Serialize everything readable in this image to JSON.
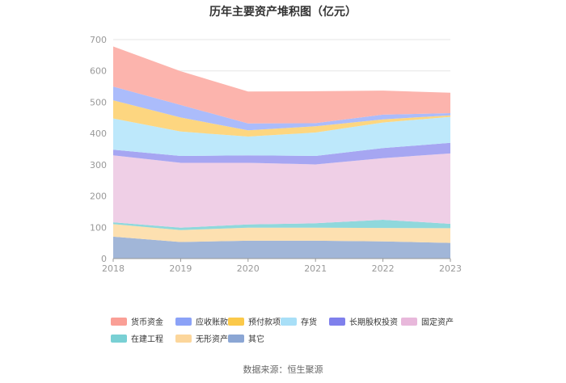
{
  "chart_data": {
    "type": "area",
    "stacked": true,
    "title": "历年主要资产堆积图（亿元）",
    "x": [
      "2018",
      "2019",
      "2020",
      "2021",
      "2022",
      "2023"
    ],
    "ylim": [
      0,
      700
    ],
    "yticks": [
      0,
      100,
      200,
      300,
      400,
      500,
      600,
      700
    ],
    "xlabel": "",
    "ylabel": "",
    "grid": true,
    "legend_position": "bottom",
    "series": [
      {
        "name": "其它",
        "color": "#a1b6d8",
        "values": [
          70,
          53,
          57,
          57,
          55,
          50
        ]
      },
      {
        "name": "无形资产",
        "color": "#fde0b0",
        "values": [
          40,
          38,
          42,
          42,
          43,
          47
        ]
      },
      {
        "name": "在建工程",
        "color": "#8fd8dc",
        "values": [
          6,
          8,
          10,
          14,
          26,
          14
        ]
      },
      {
        "name": "固定资产",
        "color": "#efcfe6",
        "values": [
          214,
          207,
          197,
          188,
          197,
          225
        ]
      },
      {
        "name": "长期股权投资",
        "color": "#a6a6f2",
        "values": [
          18,
          22,
          24,
          27,
          32,
          34
        ]
      },
      {
        "name": "存货",
        "color": "#bde8fb",
        "values": [
          100,
          78,
          60,
          75,
          82,
          83
        ]
      },
      {
        "name": "预付款项",
        "color": "#fdd680",
        "values": [
          58,
          45,
          20,
          20,
          10,
          5
        ]
      },
      {
        "name": "应收账款",
        "color": "#abbcfb",
        "values": [
          44,
          40,
          22,
          10,
          15,
          7
        ]
      },
      {
        "name": "货币资金",
        "color": "#fcb4ad",
        "values": [
          128,
          108,
          102,
          102,
          77,
          65
        ]
      }
    ],
    "legend_order": [
      "货币资金",
      "应收账款",
      "预付款项",
      "存货",
      "长期股权投资",
      "固定资产",
      "在建工程",
      "无形资产",
      "其它"
    ],
    "legend_colors": [
      "#fa9f96",
      "#8ba2f7",
      "#fbc94a",
      "#a8dff7",
      "#7f80ec",
      "#e8b8db",
      "#79d0d4",
      "#fcd69b",
      "#8ba6d4"
    ],
    "source": "数据来源：恒生聚源"
  }
}
